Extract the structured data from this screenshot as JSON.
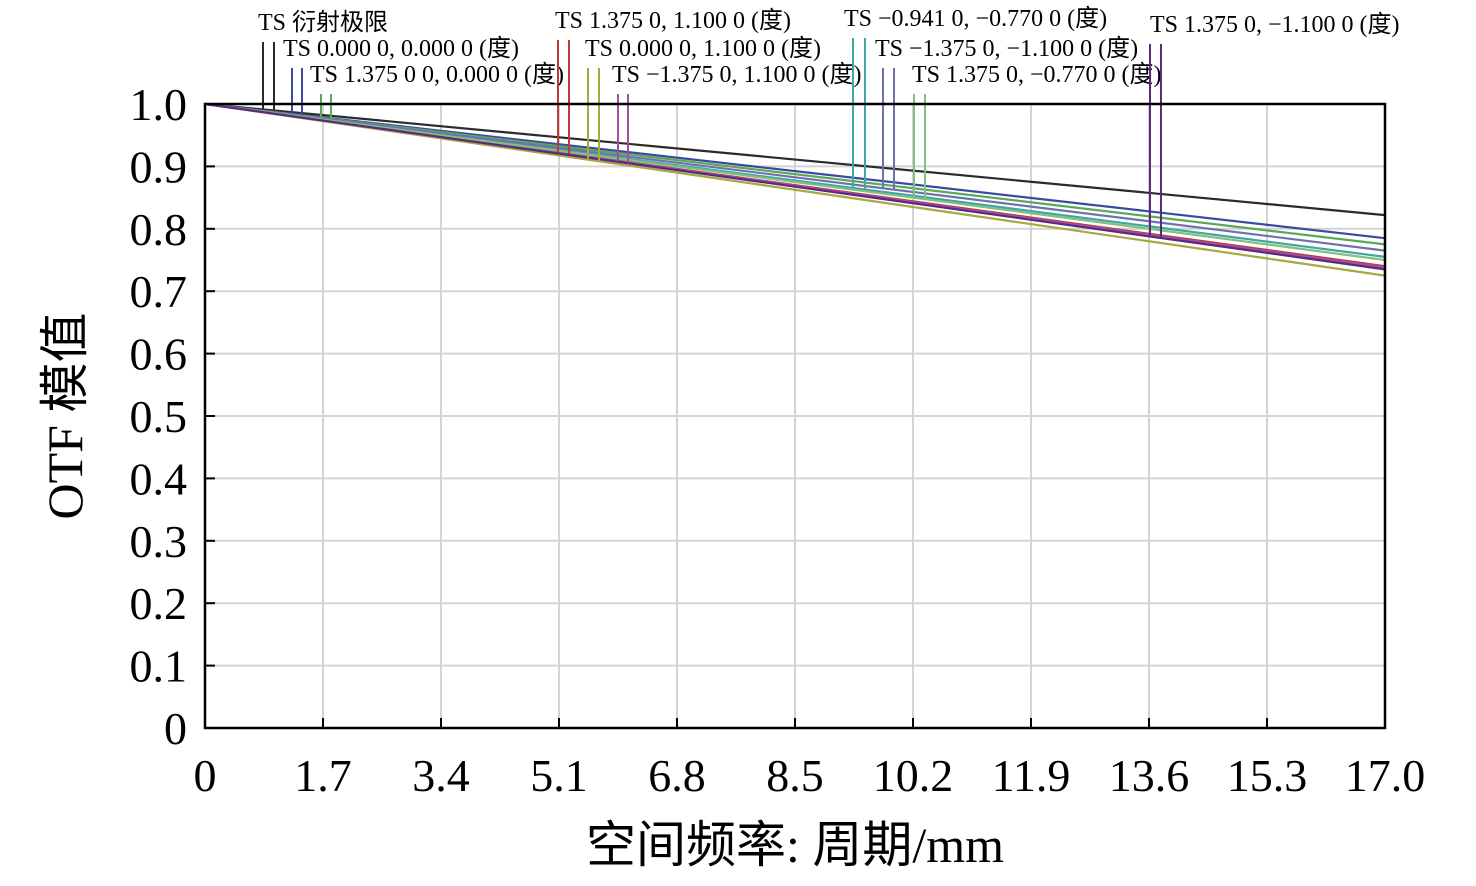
{
  "chart_data": {
    "type": "line",
    "title": "",
    "xlabel": "空间频率: 周期/mm",
    "ylabel": "OTF 模值",
    "xlim": [
      0,
      17.0
    ],
    "ylim": [
      0,
      1.0
    ],
    "grid": true,
    "x_ticks": [
      "0",
      "1.7",
      "3.4",
      "5.1",
      "6.8",
      "8.5",
      "10.2",
      "11.9",
      "13.6",
      "15.3",
      "17.0"
    ],
    "y_ticks": [
      "0",
      "0.1",
      "0.2",
      "0.3",
      "0.4",
      "0.5",
      "0.6",
      "0.7",
      "0.8",
      "0.9",
      "1.0"
    ],
    "legend_placement": "top, staggered labels with leader lines",
    "series": [
      {
        "name": "TS 衍射极限",
        "color": "#2b2b2b",
        "x": [
          0,
          17.0
        ],
        "y": [
          1.0,
          0.822
        ]
      },
      {
        "name": "TS 0.000 0, 0.000 0 (度)",
        "color": "#3a4aa0",
        "x": [
          0,
          17.0
        ],
        "y": [
          1.0,
          0.785
        ]
      },
      {
        "name": "TS 1.375 0 0, 0.000 0 (度)",
        "color": "#5aaa55",
        "x": [
          0,
          17.0
        ],
        "y": [
          1.0,
          0.775
        ]
      },
      {
        "name": "TS 1.375 0, 1.100 0 (度)",
        "color": "#c03838",
        "x": [
          0,
          17.0
        ],
        "y": [
          1.0,
          0.74
        ]
      },
      {
        "name": "TS 0.000 0, 1.100 0 (度)",
        "color": "#a8a840",
        "x": [
          0,
          17.0
        ],
        "y": [
          1.0,
          0.725
        ]
      },
      {
        "name": "TS −1.375 0, 1.100 0 (度)",
        "color": "#a050a0",
        "x": [
          0,
          17.0
        ],
        "y": [
          1.0,
          0.738
        ]
      },
      {
        "name": "TS −0.941 0, −0.770 0 (度)",
        "color": "#40a8a0",
        "x": [
          0,
          17.0
        ],
        "y": [
          1.0,
          0.755
        ]
      },
      {
        "name": "TS −1.375 0, −1.100 0 (度)",
        "color": "#7070b0",
        "x": [
          0,
          17.0
        ],
        "y": [
          1.0,
          0.765
        ]
      },
      {
        "name": "TS 1.375 0, −0.770 0 (度)",
        "color": "#80c080",
        "x": [
          0,
          17.0
        ],
        "y": [
          1.0,
          0.75
        ]
      },
      {
        "name": "TS 1.375 0, −1.100 0 (度)",
        "color": "#5a2a80",
        "x": [
          0,
          17.0
        ],
        "y": [
          1.0,
          0.735
        ]
      }
    ]
  }
}
